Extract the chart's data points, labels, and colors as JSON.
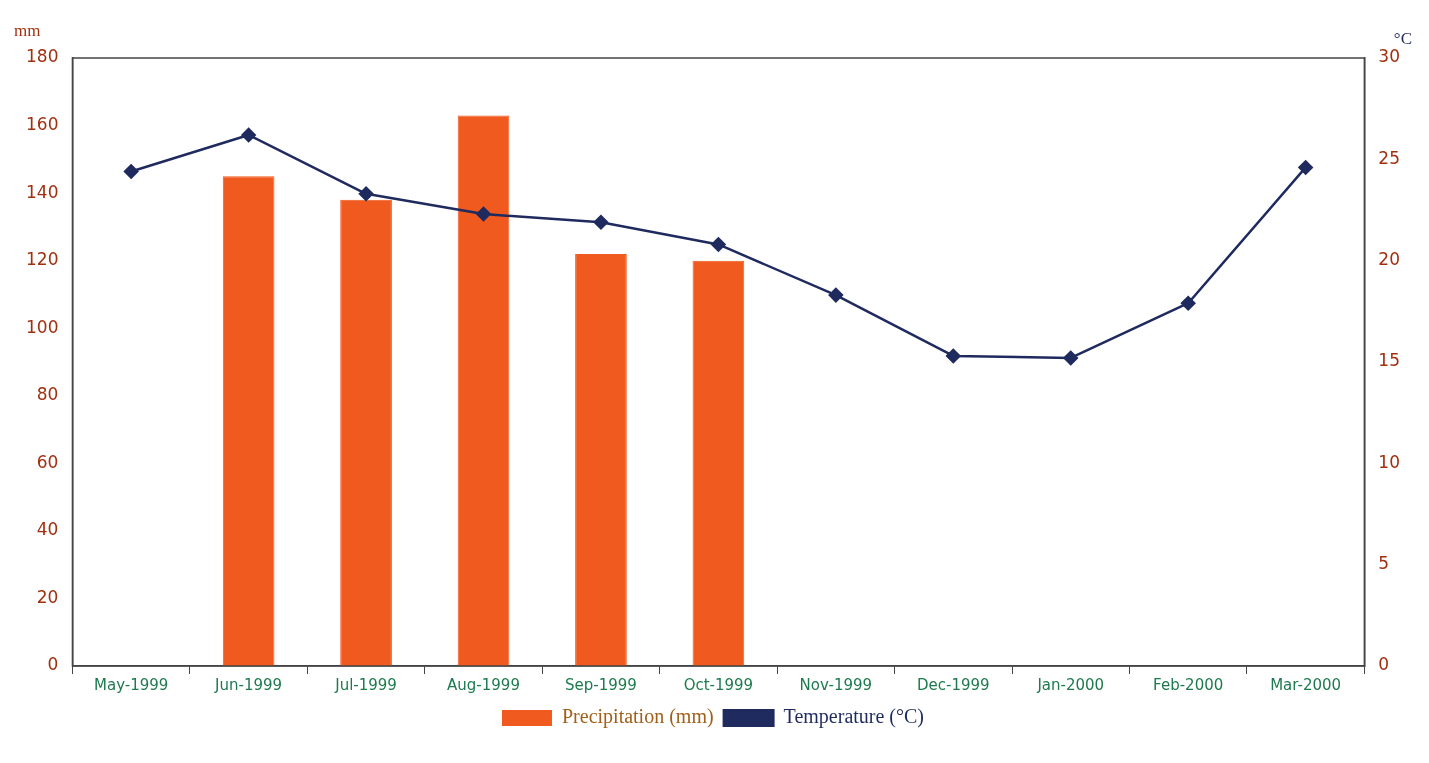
{
  "chart_data": {
    "type": "bar",
    "ylabel": "mm",
    "y2label": "°C",
    "categories": [
      "May-1999",
      "Jun-1999",
      "Jul-1999",
      "Aug-1999",
      "Sep-1999",
      "Oct-1999",
      "Nov-1999",
      "Dec-1999",
      "Jan-2000",
      "Feb-2000",
      "Mar-2000"
    ],
    "series": [
      {
        "name": "Precipitation (mm)",
        "color": "#f05a1e",
        "values": [
          null,
          145,
          138,
          163,
          122,
          120,
          null,
          null,
          null,
          null,
          null
        ]
      },
      {
        "name": "Temperature (°C)",
        "type": "line",
        "axis": "y2",
        "color": "#1f2a5e",
        "marker": "diamond",
        "line_style": "solid",
        "values": [
          24.4,
          26.2,
          23.3,
          22.3,
          21.9,
          20.8,
          18.3,
          15.3,
          15.2,
          17.9,
          24.6
        ]
      }
    ],
    "ylim": [
      0,
      180
    ],
    "yticks": [
      0,
      20,
      40,
      60,
      80,
      100,
      120,
      140,
      160,
      180
    ],
    "y2lim": [
      0,
      30
    ],
    "y2ticks": [
      0,
      5,
      10,
      15,
      20,
      25,
      30
    ],
    "grid": false,
    "legend": "bottom"
  }
}
